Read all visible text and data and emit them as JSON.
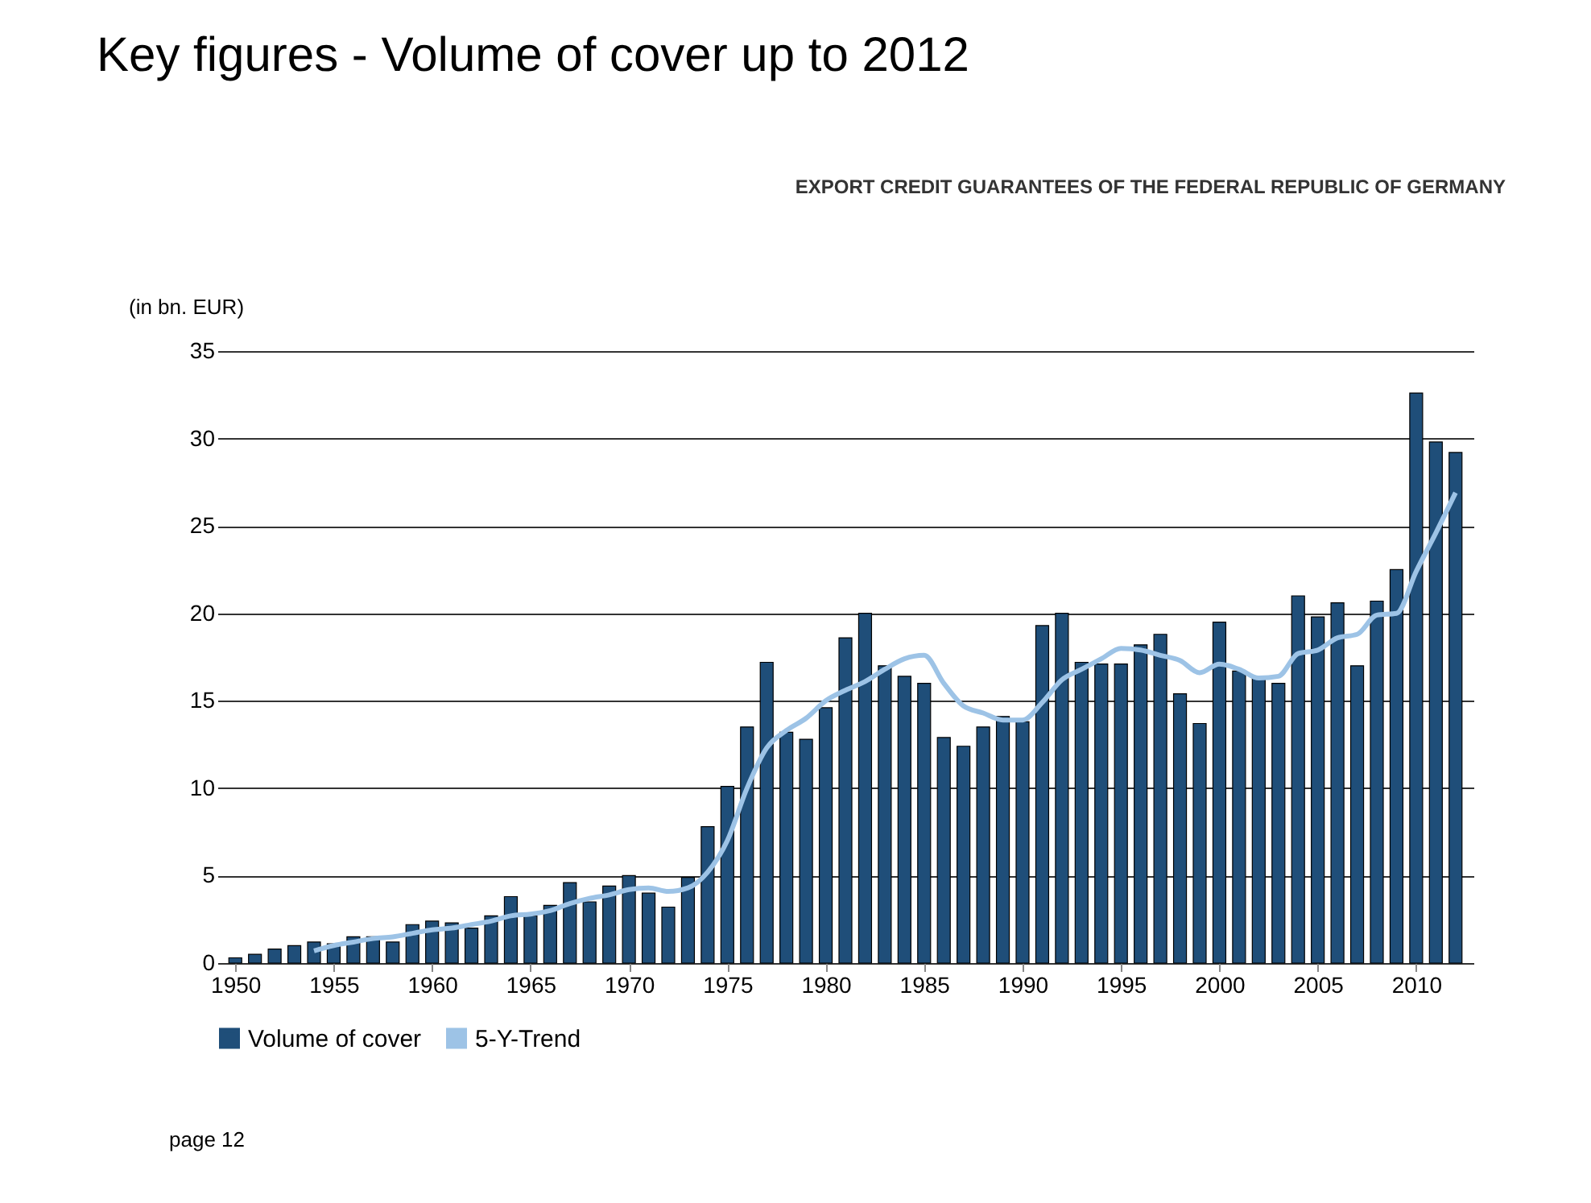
{
  "chart_data": {
    "type": "bar",
    "title": "Key figures - Volume of cover up to 2012",
    "ylabel": "(in bn. EUR)",
    "annotations": [
      "EXPORT CREDIT GUARANTEES OF THE FEDERAL REPUBLIC OF GERMANY",
      "page 12"
    ],
    "x": [
      1950,
      1951,
      1952,
      1953,
      1954,
      1955,
      1956,
      1957,
      1958,
      1959,
      1960,
      1961,
      1962,
      1963,
      1964,
      1965,
      1966,
      1967,
      1968,
      1969,
      1970,
      1971,
      1972,
      1973,
      1974,
      1975,
      1976,
      1977,
      1978,
      1979,
      1980,
      1981,
      1982,
      1983,
      1984,
      1985,
      1986,
      1987,
      1988,
      1989,
      1990,
      1991,
      1992,
      1993,
      1994,
      1995,
      1996,
      1997,
      1998,
      1999,
      2000,
      2001,
      2002,
      2003,
      2004,
      2005,
      2006,
      2007,
      2008,
      2009,
      2010,
      2011,
      2012
    ],
    "series": [
      {
        "name": "Volume of cover",
        "color": "#1f4e79",
        "values": [
          0.3,
          0.5,
          0.8,
          1.0,
          1.2,
          1.1,
          1.5,
          1.5,
          1.2,
          2.2,
          2.4,
          2.3,
          2.0,
          2.7,
          3.8,
          2.7,
          3.3,
          4.6,
          3.5,
          4.4,
          5.0,
          4.0,
          3.2,
          4.9,
          7.8,
          10.1,
          13.5,
          17.2,
          13.2,
          12.8,
          14.6,
          18.6,
          20.0,
          17.0,
          16.4,
          16.0,
          12.9,
          12.4,
          13.5,
          14.1,
          13.8,
          19.3,
          20.0,
          17.2,
          17.1,
          17.1,
          18.2,
          18.8,
          15.4,
          13.7,
          19.5,
          16.7,
          16.4,
          16.0,
          21.0,
          19.8,
          20.6,
          17.0,
          20.7,
          22.5,
          32.6,
          29.8,
          29.2
        ]
      },
      {
        "name": "5-Y-Trend",
        "color": "#9dc3e6",
        "type": "line",
        "values": [
          null,
          null,
          null,
          null,
          0.7,
          1.0,
          1.2,
          1.4,
          1.5,
          1.7,
          1.9,
          2.0,
          2.2,
          2.4,
          2.7,
          2.8,
          3.0,
          3.4,
          3.7,
          3.9,
          4.2,
          4.3,
          4.1,
          4.3,
          5.2,
          7.0,
          10.0,
          12.3,
          13.3,
          14.0,
          15.0,
          15.6,
          16.1,
          16.8,
          17.4,
          17.6,
          16.0,
          14.7,
          14.3,
          13.9,
          13.9,
          14.9,
          16.2,
          16.8,
          17.4,
          18.0,
          17.9,
          17.6,
          17.3,
          16.6,
          17.1,
          16.8,
          16.3,
          16.4,
          17.7,
          17.9,
          18.6,
          18.8,
          19.9,
          20.0,
          22.4,
          24.6,
          26.9
        ]
      }
    ],
    "xlim": [
      1949.5,
      2012.5
    ],
    "xticks": [
      1950,
      1955,
      1960,
      1965,
      1970,
      1975,
      1980,
      1985,
      1990,
      1995,
      2000,
      2005,
      2010
    ],
    "ylim": [
      0,
      35
    ],
    "yticks": [
      0,
      5,
      10,
      15,
      20,
      25,
      30,
      35
    ],
    "grid": "y",
    "legend": "bottom",
    "line_style": "solid",
    "marker": "none"
  }
}
